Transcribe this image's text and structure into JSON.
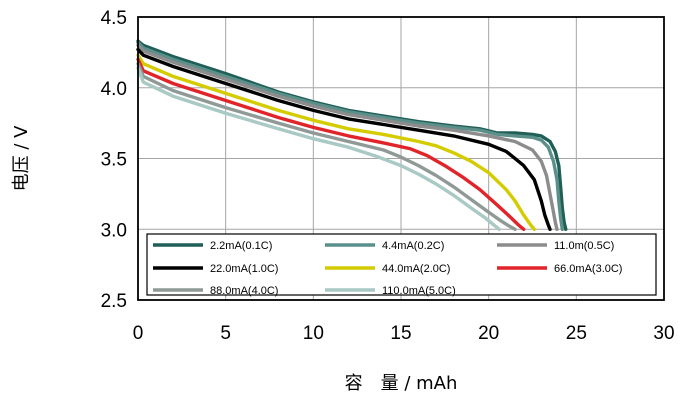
{
  "chart_data": {
    "type": "line",
    "xlabel": "容　量 / mAh",
    "ylabel": "电压 / V",
    "xlim": [
      0,
      30
    ],
    "ylim": [
      2.5,
      4.5
    ],
    "xticks": [
      "0",
      "5",
      "10",
      "15",
      "20",
      "25",
      "30"
    ],
    "yticks": [
      "2.5",
      "3.0",
      "3.5",
      "4.0",
      "4.5"
    ],
    "grid": true,
    "legend": "inside-bottom",
    "series": [
      {
        "name": "2.2mA(0.1C)",
        "color": "#1f5f57",
        "x": [
          0,
          0.3,
          2,
          5,
          8,
          10,
          12,
          14,
          16,
          18,
          19.5,
          20.5,
          21.5,
          22.5,
          23,
          23.5,
          23.8,
          24.0,
          24.1,
          24.2,
          24.3,
          24.4
        ],
        "y": [
          4.33,
          4.3,
          4.22,
          4.1,
          3.97,
          3.9,
          3.84,
          3.8,
          3.76,
          3.73,
          3.71,
          3.68,
          3.68,
          3.67,
          3.66,
          3.62,
          3.55,
          3.45,
          3.3,
          3.15,
          3.05,
          3.0
        ]
      },
      {
        "name": "4.4mA(0.2C)",
        "color": "#5a8f8a",
        "x": [
          0,
          0.3,
          2,
          5,
          8,
          10,
          12,
          14,
          16,
          18,
          19.5,
          20.5,
          21.5,
          22.5,
          23,
          23.4,
          23.7,
          23.9,
          24.0,
          24.1,
          24.2
        ],
        "y": [
          4.32,
          4.28,
          4.2,
          4.08,
          3.96,
          3.89,
          3.83,
          3.79,
          3.75,
          3.72,
          3.7,
          3.67,
          3.66,
          3.65,
          3.63,
          3.58,
          3.48,
          3.35,
          3.2,
          3.08,
          3.0
        ]
      },
      {
        "name": "11.0m(0.5C)",
        "color": "#8c8c8c",
        "x": [
          0,
          0.3,
          2,
          5,
          8,
          10,
          12,
          14,
          16,
          18,
          20,
          21.5,
          22.5,
          23,
          23.3,
          23.5,
          23.7,
          23.8,
          23.9
        ],
        "y": [
          4.3,
          4.26,
          4.18,
          4.06,
          3.94,
          3.87,
          3.81,
          3.77,
          3.73,
          3.7,
          3.66,
          3.62,
          3.56,
          3.48,
          3.38,
          3.25,
          3.12,
          3.05,
          3.0
        ]
      },
      {
        "name": "22.0mA(1.0C)",
        "color": "#000000",
        "x": [
          0,
          0.3,
          2,
          5,
          8,
          10,
          12,
          14,
          16,
          18,
          20,
          21,
          22,
          22.6,
          23,
          23.2,
          23.4,
          23.5
        ],
        "y": [
          4.27,
          4.23,
          4.15,
          4.03,
          3.91,
          3.84,
          3.78,
          3.74,
          3.7,
          3.66,
          3.6,
          3.55,
          3.45,
          3.35,
          3.2,
          3.1,
          3.03,
          3.0
        ]
      },
      {
        "name": "44.0mA(2.0C)",
        "color": "#d4cc00",
        "x": [
          0,
          0.3,
          2,
          5,
          8,
          10,
          12,
          14,
          16,
          17,
          18,
          19,
          20,
          21,
          21.5,
          22,
          22.4,
          22.6
        ],
        "y": [
          4.23,
          4.17,
          4.08,
          3.96,
          3.84,
          3.77,
          3.71,
          3.67,
          3.62,
          3.59,
          3.54,
          3.48,
          3.4,
          3.28,
          3.2,
          3.1,
          3.03,
          3.0
        ]
      },
      {
        "name": "66.0mA(3.0C)",
        "color": "#e0242a",
        "x": [
          0,
          0.3,
          2,
          5,
          8,
          10,
          12,
          14,
          15.5,
          16.5,
          17.5,
          18.5,
          19.5,
          20.5,
          21.2,
          21.7,
          22.0
        ],
        "y": [
          4.2,
          4.12,
          4.03,
          3.91,
          3.79,
          3.72,
          3.66,
          3.61,
          3.57,
          3.52,
          3.45,
          3.37,
          3.28,
          3.17,
          3.09,
          3.03,
          3.0
        ]
      },
      {
        "name": "88.0mA(4.0C)",
        "color": "#8f9a97",
        "x": [
          0,
          0.3,
          2,
          5,
          8,
          10,
          12,
          14,
          15,
          16,
          17,
          18,
          19,
          20,
          20.7,
          21.2,
          21.5
        ],
        "y": [
          4.17,
          4.08,
          3.98,
          3.86,
          3.75,
          3.68,
          3.62,
          3.56,
          3.51,
          3.45,
          3.38,
          3.3,
          3.21,
          3.12,
          3.06,
          3.02,
          3.0
        ]
      },
      {
        "name": "110.0mA(5.0C)",
        "color": "#a9c9c4",
        "x": [
          0,
          0.3,
          2,
          5,
          8,
          10,
          12,
          13.5,
          15,
          16,
          17,
          18,
          19,
          19.8,
          20.3,
          20.6
        ],
        "y": [
          4.14,
          4.04,
          3.94,
          3.82,
          3.71,
          3.64,
          3.58,
          3.52,
          3.45,
          3.39,
          3.32,
          3.24,
          3.15,
          3.08,
          3.03,
          3.0
        ]
      }
    ]
  }
}
